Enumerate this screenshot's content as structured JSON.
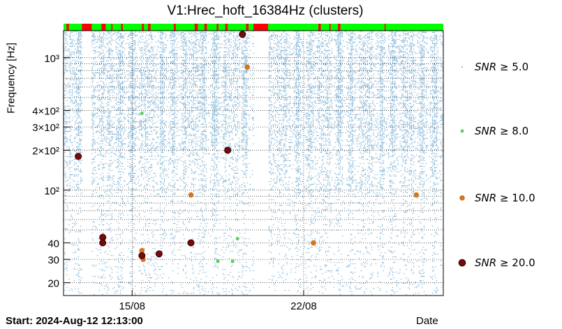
{
  "header": {
    "title": "V1:Hrec_hoft_16384Hz (clusters)"
  },
  "footer": {
    "start": "Start: 2024-Aug-12 12:13:00"
  },
  "chart_data": {
    "type": "scatter",
    "title": "V1:Hrec_hoft_16384Hz (clusters)",
    "xlabel": "Date",
    "ylabel": "Frequency [Hz]",
    "yscale": "log",
    "ylim": [
      16,
      1600
    ],
    "xlim_days": [
      0,
      15.5
    ],
    "x_ticks": [
      {
        "label": "15/08",
        "day": 2.8
      },
      {
        "label": "22/08",
        "day": 9.8
      }
    ],
    "y_ticks": [
      {
        "label": "20",
        "value": 20
      },
      {
        "label": "30",
        "value": 30
      },
      {
        "label": "40",
        "value": 40
      },
      {
        "label": "10²",
        "value": 100
      },
      {
        "label": "2×10²",
        "value": 200
      },
      {
        "label": "3×10²",
        "value": 300
      },
      {
        "label": "4×10²",
        "value": 400
      },
      {
        "label": "10³",
        "value": 1000
      }
    ],
    "grid": true,
    "legend_position": "right",
    "colors": {
      "snr5": "#1f77b4",
      "snr8": "#5ccf5c",
      "snr10": "#d2761f",
      "snr20": "#7a0a0a",
      "state_ok": "#00ff00",
      "state_bad": "#ff0000"
    },
    "legend": [
      {
        "label_sym": "SNR",
        "label_rest": " ≥ 5.0",
        "color": "#1f77b4",
        "size": 1
      },
      {
        "label_sym": "SNR",
        "label_rest": " ≥ 8.0",
        "color": "#5ccf5c",
        "size": 4
      },
      {
        "label_sym": "SNR",
        "label_rest": " ≥ 10.0",
        "color": "#d2761f",
        "size": 5
      },
      {
        "label_sym": "SNR",
        "label_rest": " ≥ 20.0",
        "color": "#7a0a0a",
        "size": 6
      }
    ],
    "gaps_days": [
      [
        0.75,
        1.15
      ],
      [
        7.75,
        8.35
      ]
    ],
    "state_bad_days": [
      [
        0.12,
        0.22
      ],
      [
        0.75,
        1.15
      ],
      [
        1.55,
        1.72
      ],
      [
        1.95,
        2.0
      ],
      [
        2.35,
        2.42
      ],
      [
        3.2,
        3.28
      ],
      [
        3.45,
        3.55
      ],
      [
        4.5,
        4.58
      ],
      [
        5.35,
        5.48
      ],
      [
        5.75,
        5.85
      ],
      [
        6.25,
        6.32
      ],
      [
        6.6,
        6.7
      ],
      [
        7.45,
        7.55
      ],
      [
        7.75,
        8.35
      ],
      [
        10.4,
        10.5
      ],
      [
        10.85,
        10.9
      ],
      [
        11.2,
        11.3
      ],
      [
        13.1,
        13.15
      ]
    ],
    "series": [
      {
        "name": "SNR ≥ 8.0",
        "points": [
          {
            "day": 3.2,
            "y": 380
          },
          {
            "day": 6.3,
            "y": 29
          },
          {
            "day": 6.9,
            "y": 29
          },
          {
            "day": 7.1,
            "y": 43
          }
        ]
      },
      {
        "name": "SNR ≥ 10.0",
        "points": [
          {
            "day": 3.2,
            "y": 35
          },
          {
            "day": 3.25,
            "y": 30
          },
          {
            "day": 5.2,
            "y": 92
          },
          {
            "day": 7.5,
            "y": 850
          },
          {
            "day": 10.2,
            "y": 40
          },
          {
            "day": 14.4,
            "y": 92
          }
        ]
      },
      {
        "name": "SNR ≥ 20.0",
        "points": [
          {
            "day": 0.6,
            "y": 180
          },
          {
            "day": 1.6,
            "y": 44
          },
          {
            "day": 1.6,
            "y": 40
          },
          {
            "day": 3.2,
            "y": 32
          },
          {
            "day": 3.9,
            "y": 33
          },
          {
            "day": 5.2,
            "y": 40
          },
          {
            "day": 6.7,
            "y": 200
          },
          {
            "day": 7.3,
            "y": 1500
          }
        ]
      }
    ]
  }
}
